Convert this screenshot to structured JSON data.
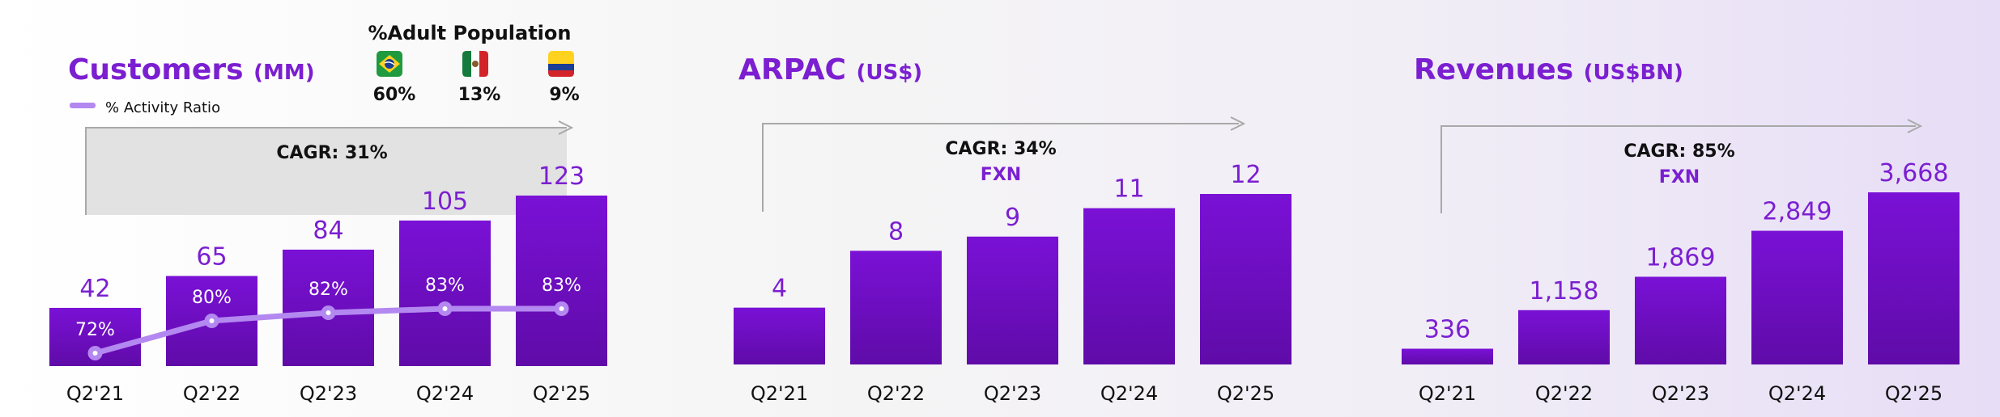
{
  "population": {
    "title": "%Adult Population",
    "countries": [
      {
        "name": "Brazil",
        "icon": "brazil-flag-icon",
        "value": "60%"
      },
      {
        "name": "Mexico",
        "icon": "mexico-flag-icon",
        "value": "13%"
      },
      {
        "name": "Colombia",
        "icon": "colombia-flag-icon",
        "value": "9%"
      }
    ]
  },
  "legend": {
    "activity_ratio": "% Activity Ratio"
  },
  "colors": {
    "bar_top": "#7a11d6",
    "bar_bottom": "#5f0ba8",
    "accent": "#7b1fd1",
    "line": "#b388f0",
    "cagr_box": "#e2e2e2"
  },
  "chart_data": [
    {
      "type": "bar",
      "title": "Customers",
      "unit": "(MM)",
      "categories": [
        "Q2'21",
        "Q2'22",
        "Q2'23",
        "Q2'24",
        "Q2'25"
      ],
      "values": [
        42,
        65,
        84,
        105,
        123
      ],
      "value_labels": [
        "42",
        "65",
        "84",
        "105",
        "123"
      ],
      "cagr": "CAGR: 31%",
      "cagr_sub": "",
      "overlay_line": {
        "name": "% Activity Ratio",
        "values": [
          72,
          80,
          82,
          83,
          83
        ],
        "labels": [
          "72%",
          "80%",
          "82%",
          "83%",
          "83%"
        ]
      }
    },
    {
      "type": "bar",
      "title": "ARPAC",
      "unit": "(US$)",
      "categories": [
        "Q2'21",
        "Q2'22",
        "Q2'23",
        "Q2'24",
        "Q2'25"
      ],
      "values": [
        4,
        8,
        9,
        11,
        12
      ],
      "value_labels": [
        "4",
        "8",
        "9",
        "11",
        "12"
      ],
      "cagr": "CAGR: 34%",
      "cagr_sub": "FXN"
    },
    {
      "type": "bar",
      "title": "Revenues",
      "unit": "(US$BN)",
      "categories": [
        "Q2'21",
        "Q2'22",
        "Q2'23",
        "Q2'24",
        "Q2'25"
      ],
      "values": [
        336,
        1158,
        1869,
        2849,
        3668
      ],
      "value_labels": [
        "336",
        "1,158",
        "1,869",
        "2,849",
        "3,668"
      ],
      "cagr": "CAGR: 85%",
      "cagr_sub": "FXN"
    }
  ]
}
